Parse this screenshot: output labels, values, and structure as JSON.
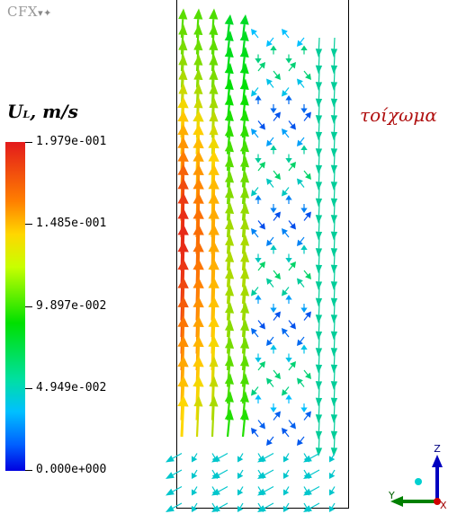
{
  "logo": {
    "text": "CFX",
    "icon": "cfx-logo-icon"
  },
  "legend": {
    "title_main": "U",
    "title_sub": "L",
    "title_units": ", m/s",
    "labels": [
      "1.979e-001",
      "1.485e-001",
      "9.897e-002",
      "4.949e-002",
      "0.000e+000"
    ],
    "min": 0.0,
    "max": 0.1979,
    "colors": [
      "#0000e0",
      "#00c0ff",
      "#00e000",
      "#ffd700",
      "#e31a1c"
    ]
  },
  "wall_label": "τοίχωμα",
  "axes": {
    "z": "Z",
    "y": "Y",
    "x": "X"
  }
}
